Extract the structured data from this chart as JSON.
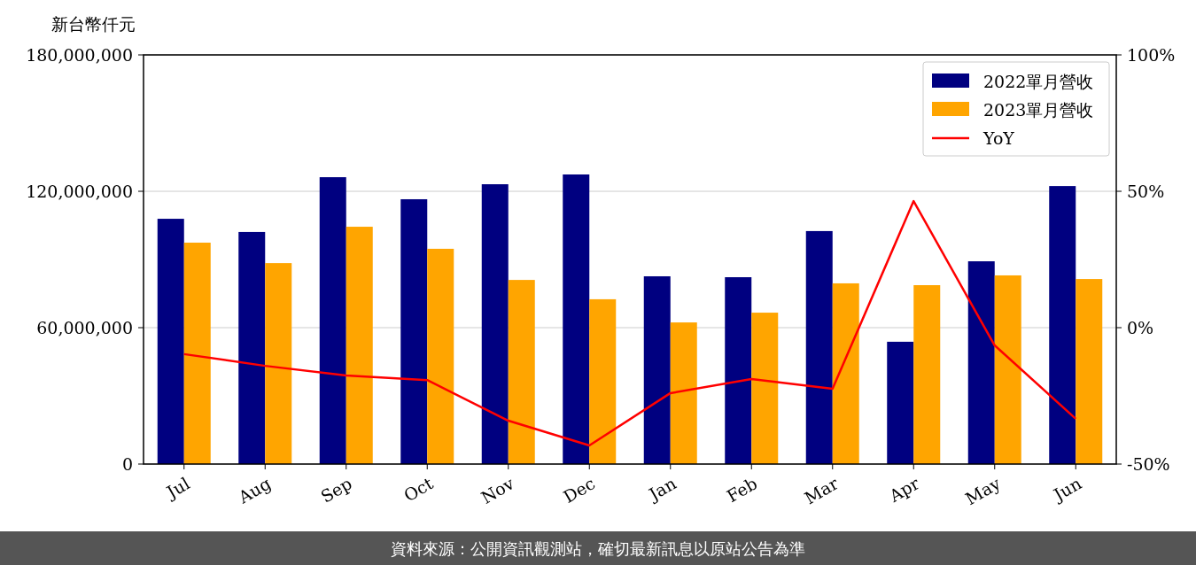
{
  "chart_data": {
    "type": "bar",
    "ylabel": "新台幣仟元",
    "categories": [
      "Jul",
      "Aug",
      "Sep",
      "Oct",
      "Nov",
      "Dec",
      "Jan",
      "Feb",
      "Mar",
      "Apr",
      "May",
      "Jun"
    ],
    "series": [
      {
        "name": "2022單月營收",
        "color": "#000080",
        "values": [
          107900000,
          102100000,
          126200000,
          116500000,
          123100000,
          127400000,
          82600000,
          82200000,
          102500000,
          53800000,
          89200000,
          122300000
        ]
      },
      {
        "name": "2023單月營收",
        "color": "#ffa500",
        "values": [
          97400000,
          88400000,
          104400000,
          94700000,
          81000000,
          72500000,
          62300000,
          66600000,
          79500000,
          78700000,
          83000000,
          81400000
        ]
      },
      {
        "name": "YoY",
        "type": "line",
        "axis": "y2",
        "color": "#ff0000",
        "values": [
          -9.7,
          -14,
          -17.5,
          -19.2,
          -34.1,
          -43.2,
          -24,
          -18.8,
          -22.4,
          46.4,
          -6.5,
          -33.4
        ]
      }
    ],
    "ylim": [
      0,
      180000000
    ],
    "yticks": [
      0,
      {
        "value": 60000000,
        "label": "60,000,000"
      },
      {
        "value": 120000000,
        "label": "120,000,000"
      },
      {
        "value": 180000000,
        "label": "180,000,000"
      }
    ],
    "y2lim": [
      -50,
      100
    ],
    "y2ticks": [
      {
        "value": -50,
        "label": "-50%"
      },
      {
        "value": 0,
        "label": "0%"
      },
      {
        "value": 50,
        "label": "50%"
      },
      {
        "value": 100,
        "label": "100%"
      }
    ],
    "grid": "y",
    "legend": "top right",
    "annotations": [
      "資料來源：公開資訊觀測站，確切最新訊息以原站公告為準"
    ]
  }
}
